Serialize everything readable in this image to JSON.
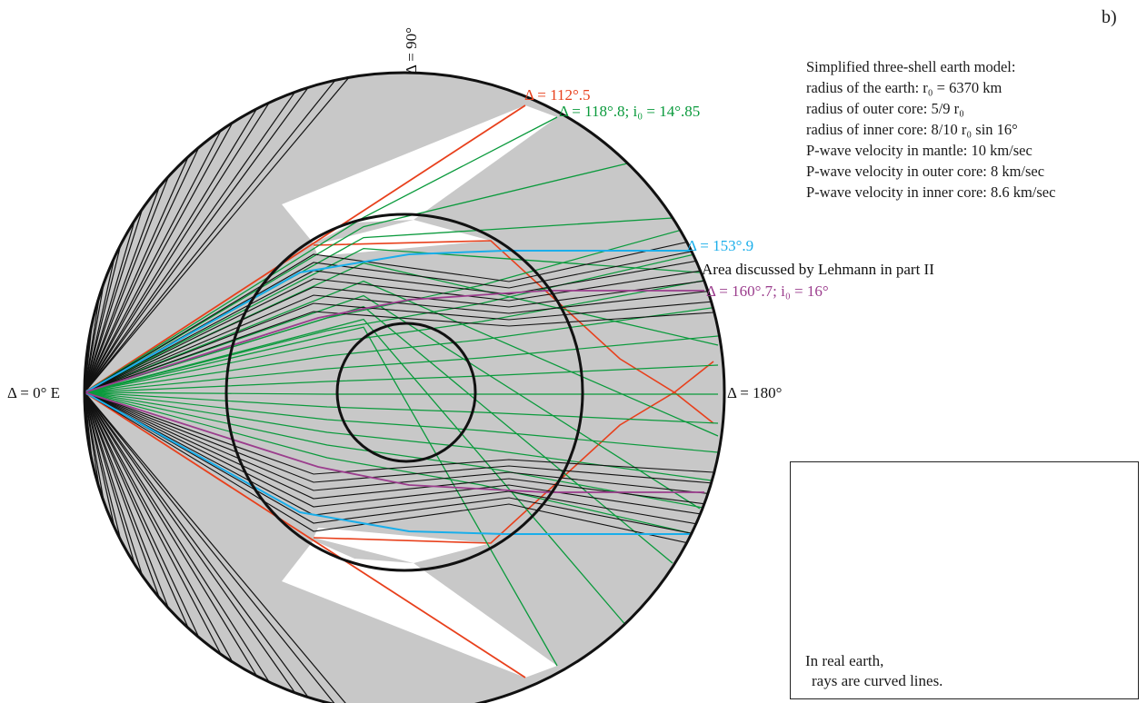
{
  "panel_label": "b)",
  "model": {
    "title": "Simplified three-shell earth model:",
    "lines": [
      "radius of the earth: r₀ = 6370 km",
      "radius of outer core: 5/9 r₀",
      "radius of inner core: 8/10 r₀ sin 16°",
      "P-wave velocity in mantle: 10 km/sec",
      "P-wave velocity in outer core: 8 km/sec",
      "P-wave velocity in inner core: 8.6 km/sec"
    ]
  },
  "labels": {
    "delta_90": "Δ = 90°",
    "delta_0": "Δ = 0°  E",
    "delta_180": "Δ = 180°",
    "delta_112": "Δ = 112°.5",
    "delta_118": "Δ = 118°.8; i₀ = 14°.85",
    "delta_153": "Δ = 153°.9",
    "lehmann": "Area discussed by Lehmann in part II",
    "delta_160": "Δ = 160°.7; i₀ = 16°"
  },
  "inset": {
    "caption_line1": "In real earth,",
    "caption_line2": "rays are curved lines."
  },
  "colors": {
    "red": "#e8401c",
    "green": "#0a9a3c",
    "blue": "#1aaeea",
    "purple": "#9b3d8d",
    "shade": "#c8c8c8",
    "ink": "#111111"
  }
}
